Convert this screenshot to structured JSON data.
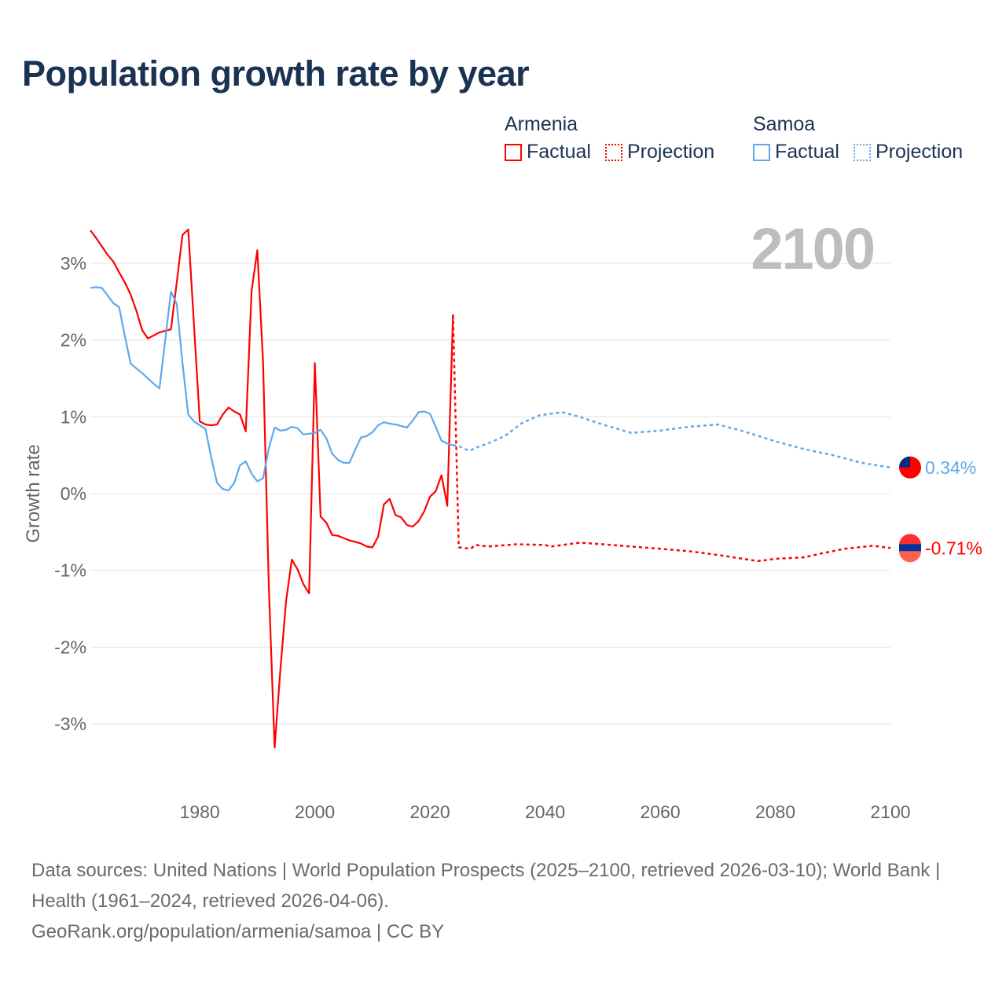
{
  "title": "Population growth rate by year",
  "legend": {
    "groups": [
      {
        "name": "Armenia",
        "color": "#ff0000",
        "factual": "Factual",
        "projection": "Projection"
      },
      {
        "name": "Samoa",
        "color": "#5ea8ec",
        "factual": "Factual",
        "projection": "Projection"
      }
    ]
  },
  "footer": {
    "sources": "Data sources: United Nations | World Population Prospects (2025–2100, retrieved 2026-03-10); World Bank | Health (1961–2024, retrieved 2026-04-06).",
    "credit": "GeoRank.org/population/armenia/samoa | CC BY"
  },
  "chart_data": {
    "type": "line",
    "title": "Population growth rate by year",
    "current_year_label": "2100",
    "xlabel": "",
    "ylabel": "Growth rate",
    "xlim": [
      1961,
      2100
    ],
    "ylim": [
      -3.9,
      3.6
    ],
    "x_ticks": [
      1980,
      2000,
      2020,
      2040,
      2060,
      2080,
      2100
    ],
    "y_ticks": [
      3,
      2,
      1,
      0,
      -1,
      -2,
      -3
    ],
    "y_tick_labels": [
      "3%",
      "2%",
      "1%",
      "0%",
      "-1%",
      "-2%",
      "-3%"
    ],
    "grid": true,
    "legend_position": "top-right",
    "series": [
      {
        "name": "Armenia",
        "color": "#ff0000",
        "end_label": "-0.71%",
        "factual_start_year": 1961,
        "factual": [
          3.43,
          3.33,
          3.22,
          3.11,
          3.02,
          2.88,
          2.75,
          2.59,
          2.38,
          2.13,
          2.02,
          2.06,
          2.1,
          2.12,
          2.14,
          2.75,
          3.37,
          3.44,
          2.2,
          0.94,
          0.9,
          0.89,
          0.9,
          1.03,
          1.12,
          1.07,
          1.03,
          0.81,
          2.64,
          3.17,
          1.72,
          -1.2,
          -3.31,
          -2.3,
          -1.4,
          -0.86,
          -0.99,
          -1.18,
          -1.3,
          1.7,
          -0.3,
          -0.38,
          -0.54,
          -0.55,
          -0.58,
          -0.61,
          -0.63,
          -0.65,
          -0.69,
          -0.7,
          -0.56,
          -0.14,
          -0.07,
          -0.28,
          -0.31,
          -0.41,
          -0.43,
          -0.36,
          -0.23,
          -0.04,
          0.03,
          0.24,
          -0.16,
          2.33
        ],
        "projection": [
          [
            2024,
            2.33
          ],
          [
            2025,
            -0.7
          ],
          [
            2027,
            -0.72
          ],
          [
            2028,
            -0.67
          ],
          [
            2030,
            -0.69
          ],
          [
            2035,
            -0.66
          ],
          [
            2040,
            -0.67
          ],
          [
            2041,
            -0.69
          ],
          [
            2046,
            -0.64
          ],
          [
            2050,
            -0.66
          ],
          [
            2055,
            -0.69
          ],
          [
            2060,
            -0.72
          ],
          [
            2065,
            -0.75
          ],
          [
            2070,
            -0.8
          ],
          [
            2077,
            -0.88
          ],
          [
            2080,
            -0.85
          ],
          [
            2085,
            -0.83
          ],
          [
            2088,
            -0.78
          ],
          [
            2092,
            -0.72
          ],
          [
            2097,
            -0.68
          ],
          [
            2100,
            -0.71
          ]
        ]
      },
      {
        "name": "Samoa",
        "color": "#5ea8ec",
        "end_label": "0.34%",
        "factual_start_year": 1961,
        "factual": [
          2.68,
          2.69,
          2.68,
          2.58,
          2.48,
          2.43,
          2.05,
          1.69,
          1.63,
          1.57,
          1.5,
          1.43,
          1.37,
          2.0,
          2.63,
          2.47,
          1.7,
          1.03,
          0.94,
          0.89,
          0.84,
          0.47,
          0.14,
          0.06,
          0.04,
          0.14,
          0.37,
          0.42,
          0.26,
          0.16,
          0.2,
          0.59,
          0.86,
          0.82,
          0.83,
          0.87,
          0.85,
          0.77,
          0.78,
          0.79,
          0.83,
          0.72,
          0.52,
          0.44,
          0.4,
          0.4,
          0.57,
          0.73,
          0.75,
          0.8,
          0.89,
          0.93,
          0.91,
          0.9,
          0.88,
          0.86,
          0.95,
          1.06,
          1.07,
          1.04,
          0.87,
          0.69,
          0.65,
          0.63
        ],
        "projection": [
          [
            2024,
            0.63
          ],
          [
            2025,
            0.62
          ],
          [
            2026,
            0.58
          ],
          [
            2027,
            0.56
          ],
          [
            2028,
            0.6
          ],
          [
            2030,
            0.65
          ],
          [
            2033,
            0.75
          ],
          [
            2036,
            0.92
          ],
          [
            2039,
            1.02
          ],
          [
            2043,
            1.06
          ],
          [
            2046,
            1.0
          ],
          [
            2050,
            0.9
          ],
          [
            2055,
            0.79
          ],
          [
            2060,
            0.82
          ],
          [
            2065,
            0.87
          ],
          [
            2070,
            0.9
          ],
          [
            2075,
            0.8
          ],
          [
            2080,
            0.68
          ],
          [
            2085,
            0.58
          ],
          [
            2090,
            0.5
          ],
          [
            2095,
            0.4
          ],
          [
            2100,
            0.34
          ]
        ]
      }
    ]
  }
}
